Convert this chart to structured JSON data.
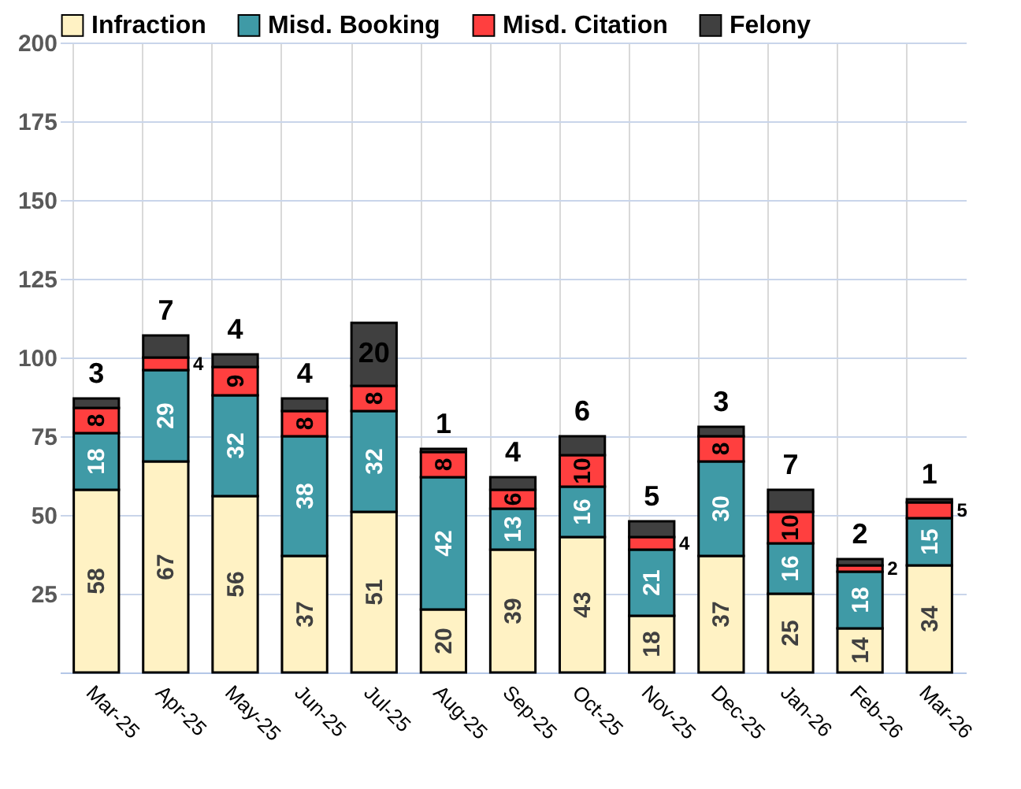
{
  "chart_data": {
    "type": "bar",
    "stacked": true,
    "data_labels": true,
    "grid": true,
    "legend": "top",
    "categories": [
      "Mar-25",
      "Apr-25",
      "May-25",
      "Jun-25",
      "Jul-25",
      "Aug-25",
      "Sep-25",
      "Oct-25",
      "Nov-25",
      "Dec-25",
      "Jan-26",
      "Feb-26",
      "Mar-26"
    ],
    "series": [
      {
        "name": "Infraction",
        "color": "#fff2c4",
        "values": [
          58,
          67,
          56,
          37,
          51,
          20,
          39,
          43,
          18,
          37,
          25,
          14,
          34
        ]
      },
      {
        "name": "Misd. Booking",
        "color": "#3f9aa6",
        "values": [
          18,
          29,
          32,
          38,
          32,
          42,
          13,
          16,
          21,
          30,
          16,
          18,
          15
        ]
      },
      {
        "name": "Misd. Citation",
        "color": "#ff3f3f",
        "values": [
          8,
          4,
          9,
          8,
          8,
          8,
          6,
          10,
          4,
          8,
          10,
          2,
          5
        ]
      },
      {
        "name": "Felony",
        "color": "#404040",
        "values": [
          3,
          7,
          4,
          4,
          20,
          1,
          4,
          6,
          5,
          3,
          7,
          2,
          1
        ]
      }
    ],
    "ylim": [
      0,
      200
    ],
    "yticks": [
      25,
      50,
      75,
      100,
      125,
      150,
      175,
      200
    ]
  }
}
